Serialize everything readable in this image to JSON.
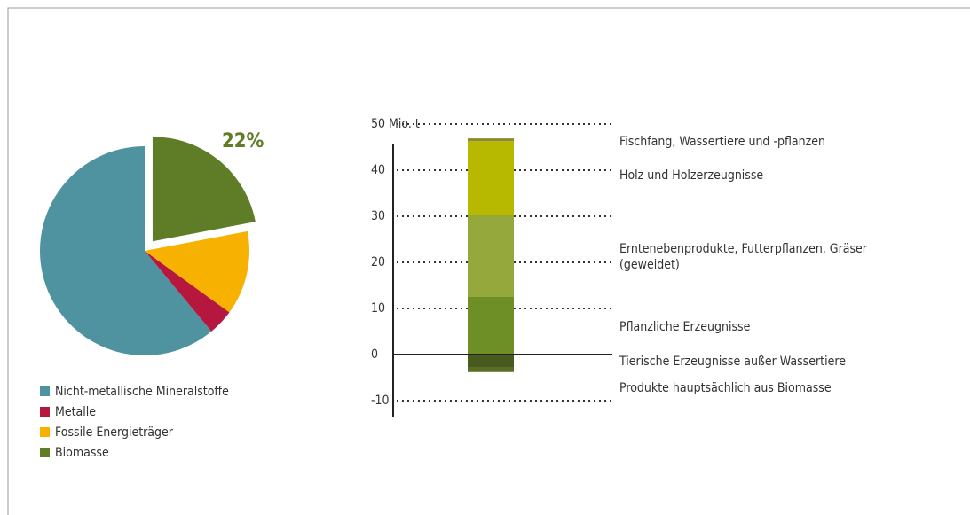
{
  "chart_data": [
    {
      "type": "pie",
      "categories": [
        "Nicht-metallische Mineralstoffe",
        "Metalle",
        "Fossile Energieträger",
        "Biomasse"
      ],
      "values": [
        61,
        4,
        13,
        22
      ],
      "value_labels": [
        null,
        null,
        null,
        "22%"
      ],
      "colors": [
        "#4f93a0",
        "#b5173f",
        "#f7b100",
        "#5f7d26"
      ],
      "explode": [
        false,
        false,
        false,
        true
      ],
      "legend": "bottom"
    },
    {
      "type": "stacked_bar",
      "series": [
        {
          "name": "Fischfang, Wassertiere und -pflanzen",
          "color": "#8c8a2e",
          "values": [
            0.6
          ]
        },
        {
          "name": "Holz und Holzerzeugnisse",
          "color": "#b7b900",
          "values": [
            16.1
          ]
        },
        {
          "name": "Erntenebenprodukte, Futterpflanzen, Gräser (geweidet)",
          "color": "#94a83c",
          "values": [
            17.7
          ]
        },
        {
          "name": "Pflanzliche Erzeugnisse",
          "color": "#6d8f26",
          "values": [
            12.5
          ]
        },
        {
          "name": "Tierische Erzeugnisse außer Wassertiere",
          "color": "#5a6d24",
          "values": [
            -1
          ]
        },
        {
          "name": "Produkte hauptsächlich aus Biomasse",
          "color": "#495a1f",
          "values": [
            -2.8
          ]
        }
      ],
      "ylim": [
        -10,
        50
      ],
      "yticks": [
        -10,
        0,
        10,
        20,
        30,
        40,
        {
          "value": 50,
          "label": "50 Mio. t"
        }
      ],
      "grid": true
    }
  ]
}
